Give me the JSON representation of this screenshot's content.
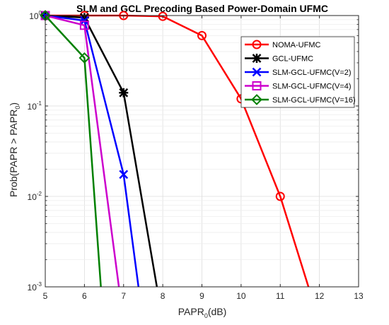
{
  "chart_data": {
    "type": "line",
    "title": "SLM and GCL Precoding Based Power-Domain UFMC",
    "xlabel": {
      "base": "PAPR",
      "sub": "0",
      "suffix": "(dB)"
    },
    "ylabel": {
      "prefix": "Prob(PAPR > PAPR",
      "sub": "0",
      "suffix": ")"
    },
    "xlim": [
      5,
      13
    ],
    "ylim": [
      0.001,
      1
    ],
    "yscale": "log",
    "grid": true,
    "legend_position": "top-right",
    "x_ticks": [
      5,
      6,
      7,
      8,
      9,
      10,
      11,
      12,
      13
    ],
    "y_ticks": [
      {
        "value": 1,
        "base": "10",
        "exp": "0"
      },
      {
        "value": 0.1,
        "base": "10",
        "exp": "-1"
      },
      {
        "value": 0.01,
        "base": "10",
        "exp": "-2"
      },
      {
        "value": 0.001,
        "base": "10",
        "exp": "-3"
      }
    ],
    "series": [
      {
        "name": "NOMA-UFMC",
        "color": "#ff0000",
        "marker": "circle",
        "x": [
          5,
          6,
          7,
          8,
          9,
          10,
          11,
          11.72
        ],
        "y": [
          1,
          1,
          1,
          0.98,
          0.6,
          0.12,
          0.01,
          0.001
        ],
        "marker_x": [
          5,
          6,
          7,
          8,
          9,
          10,
          11
        ]
      },
      {
        "name": "GCL-UFMC",
        "color": "#000000",
        "marker": "asterisk",
        "x": [
          5,
          6,
          7,
          7.85
        ],
        "y": [
          1,
          0.95,
          0.14,
          0.001
        ],
        "marker_x": [
          5,
          6,
          7
        ]
      },
      {
        "name": "SLM-GCL-UFMC(V=2)",
        "color": "#0000ff",
        "marker": "x",
        "x": [
          5,
          6,
          7,
          7.38
        ],
        "y": [
          1,
          0.88,
          0.0175,
          0.001
        ],
        "marker_x": [
          5,
          6,
          7
        ]
      },
      {
        "name": "SLM-GCL-UFMC(V=4)",
        "color": "#cc00cc",
        "marker": "square",
        "x": [
          5,
          6,
          6.88
        ],
        "y": [
          1,
          0.78,
          0.001
        ],
        "marker_x": [
          5,
          6
        ]
      },
      {
        "name": "SLM-GCL-UFMC(V=16)",
        "color": "#008000",
        "marker": "diamond",
        "x": [
          5,
          6,
          6.42
        ],
        "y": [
          1,
          0.34,
          0.001
        ],
        "marker_x": [
          5,
          6
        ]
      }
    ]
  }
}
